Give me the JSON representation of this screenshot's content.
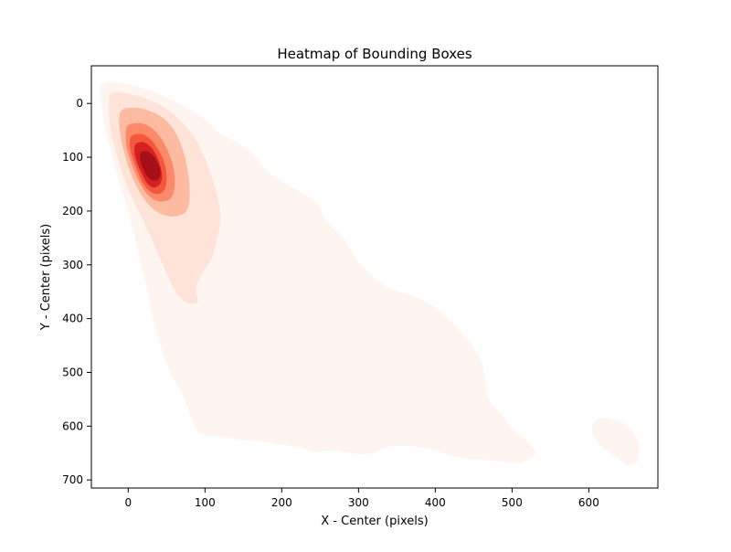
{
  "chart_data": {
    "type": "heatmap",
    "subtype": "kde-filled-contour",
    "title": "Heatmap of Bounding Boxes",
    "xlabel": "X - Center (pixels)",
    "ylabel": "Y - Center (pixels)",
    "xlim": [
      -48,
      690
    ],
    "ylim": [
      715,
      -70
    ],
    "y_axis_inverted": true,
    "grid": false,
    "legend": "none",
    "colormap": "Reds",
    "x_ticks": [
      0,
      100,
      200,
      300,
      400,
      500,
      600
    ],
    "y_ticks": [
      0,
      100,
      200,
      300,
      400,
      500,
      600,
      700
    ],
    "contour_levels": [
      {
        "level": 1,
        "color": "#fff5f0"
      },
      {
        "level": 2,
        "color": "#fee4d8"
      },
      {
        "level": 3,
        "color": "#fcbba1"
      },
      {
        "level": 4,
        "color": "#fc8a6a"
      },
      {
        "level": 5,
        "color": "#f4573d"
      },
      {
        "level": 6,
        "color": "#d42020"
      },
      {
        "level": 7,
        "color": "#a50f15"
      }
    ],
    "regions": [
      {
        "level": 1,
        "points": [
          [
            -35,
            -35
          ],
          [
            -5,
            -37
          ],
          [
            15,
            -30
          ],
          [
            35,
            -20
          ],
          [
            60,
            -5
          ],
          [
            85,
            15
          ],
          [
            105,
            35
          ],
          [
            115,
            50
          ],
          [
            125,
            60
          ],
          [
            150,
            80
          ],
          [
            165,
            100
          ],
          [
            180,
            125
          ],
          [
            205,
            150
          ],
          [
            225,
            165
          ],
          [
            245,
            185
          ],
          [
            260,
            220
          ],
          [
            285,
            260
          ],
          [
            300,
            295
          ],
          [
            335,
            340
          ],
          [
            365,
            355
          ],
          [
            395,
            375
          ],
          [
            420,
            405
          ],
          [
            445,
            445
          ],
          [
            460,
            480
          ],
          [
            465,
            515
          ],
          [
            470,
            550
          ],
          [
            490,
            585
          ],
          [
            500,
            605
          ],
          [
            515,
            622
          ],
          [
            530,
            650
          ],
          [
            510,
            668
          ],
          [
            480,
            665
          ],
          [
            450,
            662
          ],
          [
            420,
            655
          ],
          [
            405,
            647
          ],
          [
            385,
            640
          ],
          [
            360,
            636
          ],
          [
            335,
            640
          ],
          [
            320,
            650
          ],
          [
            300,
            652
          ],
          [
            270,
            645
          ],
          [
            245,
            648
          ],
          [
            230,
            642
          ],
          [
            210,
            636
          ],
          [
            190,
            633
          ],
          [
            170,
            628
          ],
          [
            145,
            625
          ],
          [
            125,
            620
          ],
          [
            100,
            617
          ],
          [
            90,
            610
          ],
          [
            85,
            595
          ],
          [
            80,
            575
          ],
          [
            70,
            540
          ],
          [
            55,
            500
          ],
          [
            40,
            440
          ],
          [
            30,
            385
          ],
          [
            22,
            330
          ],
          [
            12,
            270
          ],
          [
            0,
            200
          ],
          [
            -15,
            130
          ],
          [
            -28,
            60
          ],
          [
            -33,
            20
          ]
        ]
      },
      {
        "level": 1,
        "points": [
          [
            218,
            268
          ],
          [
            228,
            272
          ],
          [
            240,
            288
          ],
          [
            242,
            298
          ],
          [
            236,
            300
          ],
          [
            226,
            290
          ],
          [
            219,
            278
          ]
        ]
      },
      {
        "level": 1,
        "points": [
          [
            470,
            588
          ],
          [
            478,
            592
          ],
          [
            486,
            600
          ],
          [
            488,
            612
          ],
          [
            480,
            614
          ],
          [
            471,
            604
          ],
          [
            467,
            594
          ]
        ]
      },
      {
        "level": 1,
        "points": [
          [
            610,
            588
          ],
          [
            628,
            586
          ],
          [
            648,
            598
          ],
          [
            660,
            618
          ],
          [
            666,
            640
          ],
          [
            662,
            668
          ],
          [
            648,
            670
          ],
          [
            630,
            652
          ],
          [
            612,
            630
          ],
          [
            604,
            608
          ]
        ]
      },
      {
        "level": 1,
        "points": [
          [
            330,
            585
          ],
          [
            348,
            592
          ],
          [
            362,
            602
          ],
          [
            370,
            615
          ],
          [
            355,
            622
          ],
          [
            338,
            612
          ],
          [
            325,
            600
          ]
        ]
      },
      {
        "level": 2,
        "points": [
          [
            -22,
            -20
          ],
          [
            0,
            -18
          ],
          [
            25,
            -8
          ],
          [
            50,
            10
          ],
          [
            70,
            35
          ],
          [
            85,
            60
          ],
          [
            98,
            95
          ],
          [
            110,
            140
          ],
          [
            118,
            185
          ],
          [
            120,
            220
          ],
          [
            115,
            255
          ],
          [
            108,
            290
          ],
          [
            95,
            320
          ],
          [
            88,
            345
          ],
          [
            90,
            370
          ],
          [
            75,
            370
          ],
          [
            60,
            345
          ],
          [
            45,
            300
          ],
          [
            30,
            250
          ],
          [
            15,
            205
          ],
          [
            0,
            160
          ],
          [
            -12,
            110
          ],
          [
            -22,
            55
          ],
          [
            -25,
            10
          ]
        ]
      },
      {
        "level": 3,
        "points": [
          [
            -8,
            12
          ],
          [
            10,
            8
          ],
          [
            30,
            15
          ],
          [
            48,
            30
          ],
          [
            62,
            55
          ],
          [
            72,
            90
          ],
          [
            78,
            130
          ],
          [
            80,
            170
          ],
          [
            76,
            200
          ],
          [
            60,
            210
          ],
          [
            42,
            205
          ],
          [
            28,
            190
          ],
          [
            15,
            165
          ],
          [
            2,
            125
          ],
          [
            -8,
            75
          ],
          [
            -12,
            35
          ]
        ]
      },
      {
        "level": 4,
        "points": [
          [
            0,
            40
          ],
          [
            18,
            37
          ],
          [
            34,
            50
          ],
          [
            46,
            72
          ],
          [
            55,
            100
          ],
          [
            60,
            128
          ],
          [
            60,
            160
          ],
          [
            54,
            178
          ],
          [
            40,
            182
          ],
          [
            27,
            172
          ],
          [
            16,
            150
          ],
          [
            6,
            118
          ],
          [
            -2,
            82
          ],
          [
            -3,
            55
          ]
        ]
      },
      {
        "level": 5,
        "points": [
          [
            5,
            60
          ],
          [
            18,
            57
          ],
          [
            30,
            68
          ],
          [
            40,
            88
          ],
          [
            47,
            110
          ],
          [
            50,
            135
          ],
          [
            48,
            158
          ],
          [
            40,
            168
          ],
          [
            30,
            165
          ],
          [
            20,
            150
          ],
          [
            12,
            125
          ],
          [
            5,
            98
          ],
          [
            2,
            75
          ]
        ]
      },
      {
        "level": 6,
        "points": [
          [
            10,
            75
          ],
          [
            20,
            72
          ],
          [
            30,
            82
          ],
          [
            37,
            98
          ],
          [
            42,
            118
          ],
          [
            44,
            138
          ],
          [
            40,
            152
          ],
          [
            32,
            156
          ],
          [
            24,
            147
          ],
          [
            17,
            128
          ],
          [
            11,
            108
          ],
          [
            8,
            88
          ]
        ]
      },
      {
        "level": 7,
        "points": [
          [
            18,
            90
          ],
          [
            26,
            90
          ],
          [
            34,
            100
          ],
          [
            40,
            116
          ],
          [
            42,
            132
          ],
          [
            38,
            142
          ],
          [
            30,
            142
          ],
          [
            23,
            132
          ],
          [
            18,
            116
          ],
          [
            15,
            100
          ]
        ]
      }
    ]
  }
}
